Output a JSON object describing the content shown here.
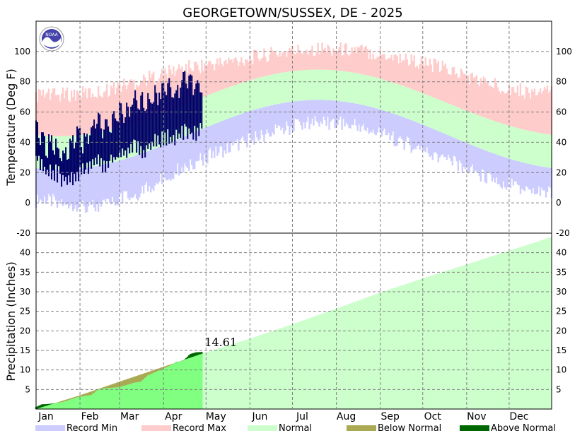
{
  "chart_data": [
    {
      "type": "area",
      "title": "GEORGETOWN/SUSSEX, DE - 2025",
      "ylabel": "Temperature (Deg F)",
      "xlabel": "",
      "ylim": [
        -20,
        120
      ],
      "yticks": [
        -20,
        0,
        20,
        40,
        60,
        80,
        100
      ],
      "grid": true,
      "x_months": [
        "Jan",
        "Feb",
        "Mar",
        "Apr",
        "May",
        "Jun",
        "Jul",
        "Aug",
        "Sep",
        "Oct",
        "Nov",
        "Dec"
      ],
      "normal_band": {
        "description": "Normal low / high by day-of-year (approx.)",
        "low_min": 22,
        "low_max": 68,
        "low_peak_day": 200,
        "high_min": 44,
        "high_max": 88,
        "high_peak_day": 200
      },
      "record_band": {
        "record_min_typical": [
          2,
          -2,
          8,
          25,
          37,
          47,
          55,
          52,
          42,
          30,
          18,
          8
        ],
        "record_max_typical": [
          70,
          72,
          80,
          88,
          92,
          97,
          101,
          100,
          95,
          88,
          78,
          72
        ]
      },
      "series": [
        {
          "name": "Observed daily range",
          "days": [
            1,
            8,
            15,
            22,
            29,
            36,
            43,
            50,
            57,
            64,
            71,
            78,
            85,
            92,
            99,
            106,
            113,
            118
          ],
          "highs": [
            50,
            38,
            36,
            32,
            45,
            38,
            55,
            48,
            58,
            60,
            68,
            66,
            70,
            78,
            72,
            80,
            76,
            78
          ],
          "lows": [
            30,
            22,
            20,
            14,
            18,
            24,
            28,
            22,
            30,
            32,
            38,
            34,
            40,
            44,
            42,
            48,
            45,
            50
          ]
        }
      ]
    },
    {
      "type": "area",
      "title": "",
      "ylabel": "Precipitation (Inches)",
      "xlabel": "",
      "ylim": [
        0,
        45
      ],
      "yticks": [
        5,
        10,
        15,
        20,
        25,
        30,
        35,
        40
      ],
      "grid": true,
      "x_months": [
        "Jan",
        "Feb",
        "Mar",
        "Apr",
        "May",
        "Jun",
        "Jul",
        "Aug",
        "Sep",
        "Oct",
        "Nov",
        "Dec"
      ],
      "annotation": "14.61",
      "normal_cumulative": {
        "days": [
          1,
          32,
          60,
          91,
          121,
          152,
          182,
          213,
          244,
          274,
          305,
          335,
          365
        ],
        "values": [
          0,
          3.5,
          7.0,
          10.8,
          14.5,
          18.0,
          21.7,
          25.7,
          29.8,
          33.4,
          37.0,
          40.5,
          44.0
        ]
      },
      "observed_cumulative": {
        "days": [
          1,
          5,
          10,
          20,
          30,
          40,
          45,
          50,
          60,
          70,
          75,
          80,
          90,
          95,
          100,
          105,
          110,
          114,
          118
        ],
        "values": [
          0.5,
          1.2,
          1.3,
          1.8,
          3.0,
          3.6,
          5.0,
          5.3,
          5.6,
          6.7,
          7.0,
          8.6,
          10.2,
          11.0,
          12.0,
          12.4,
          14.1,
          14.5,
          14.61
        ]
      }
    }
  ],
  "legend": [
    {
      "label": "Record Min",
      "color": "#ccccff"
    },
    {
      "label": "Record Max",
      "color": "#ffcccc"
    },
    {
      "label": "Normal",
      "color": "#ccffcc"
    },
    {
      "label": "Below Normal",
      "color": "#aaaa55"
    },
    {
      "label": "Above Normal",
      "color": "#006600"
    }
  ],
  "colors": {
    "record_min": "#ccccff",
    "record_max": "#ffcccc",
    "normal": "#ccffcc",
    "observed_temp": "#000066",
    "observed_precip": "#80ff80",
    "above_normal": "#006600",
    "below_normal": "#aaaa55"
  },
  "logo": {
    "text": "NOAA"
  }
}
